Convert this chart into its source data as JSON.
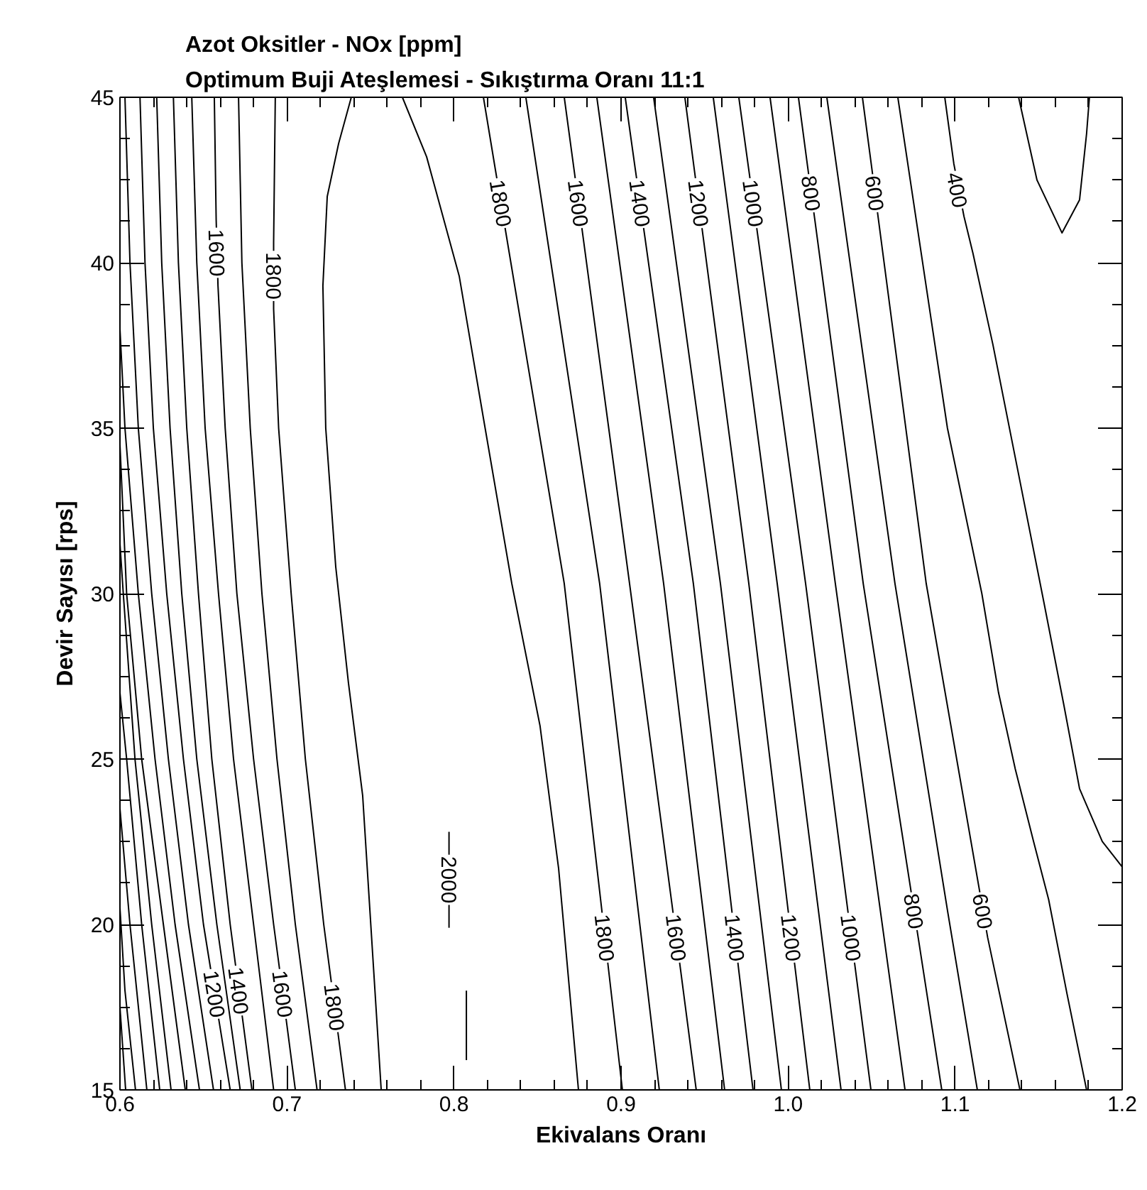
{
  "chart_data": {
    "type": "line",
    "title": "Azot Oksitler - NOx [ppm]",
    "subtitle": "Optimum Buji Ateşlemesi - Sıkıştırma Oranı 11:1",
    "xlabel": "Ekivalans Oranı",
    "ylabel": "Devir Sayısı [rps]",
    "xlim": [
      0.6,
      1.2
    ],
    "ylim": [
      15,
      45
    ],
    "xticks": [
      0.6,
      0.7,
      0.8,
      0.9,
      {
        "value": 1,
        "label": "1.0"
      },
      1.1,
      1.2
    ],
    "yticks": [
      15,
      20,
      25,
      30,
      35,
      40,
      45
    ],
    "series": [
      {
        "color": "#000000",
        "x": [
          0.6,
          0.6034
        ],
        "values": [
          17.5,
          15
        ]
      },
      {
        "color": "#000000",
        "x": [
          0.6,
          0.603,
          0.6093
        ],
        "values": [
          20.5,
          18,
          15
        ]
      },
      {
        "color": "#000000",
        "x": [
          0.6,
          0.606,
          0.6161
        ],
        "values": [
          23.5,
          20,
          15
        ]
      },
      {
        "color": "#000000",
        "x": [
          0.6,
          0.604,
          0.613,
          0.6238
        ],
        "values": [
          27,
          25,
          20,
          15
        ]
      },
      {
        "color": "#000000",
        "x": [
          0.6,
          0.602,
          0.609,
          0.619,
          0.6306
        ],
        "values": [
          31.5,
          30,
          25,
          20,
          15
        ]
      },
      {
        "color": "#000000",
        "x": [
          0.6,
          0.604,
          0.613,
          0.626,
          0.6391
        ],
        "values": [
          34.5,
          30,
          25,
          20,
          15
        ]
      },
      {
        "color": "#000000",
        "x": [
          0.6,
          0.603,
          0.611,
          0.621,
          0.633,
          0.6476
        ],
        "values": [
          38,
          35,
          30,
          25,
          20,
          15
        ]
      },
      {
        "color": "#000000",
        "x": [
          0.603,
          0.606,
          0.611,
          0.619,
          0.629,
          0.641,
          0.656
        ],
        "values": [
          45,
          40,
          35,
          30,
          25,
          20,
          15
        ]
      },
      {
        "color": "#000000",
        "x": [
          0.612,
          0.615,
          0.62,
          0.628,
          0.638,
          0.65,
          0.6535,
          0.6599,
          0.666
        ],
        "values": [
          45,
          40,
          35,
          30,
          25,
          20,
          18.9,
          16.9,
          15
        ]
      },
      {
        "color": "#000000",
        "x": [
          0.622,
          0.625,
          0.63,
          0.637,
          0.646,
          0.658,
          0.672
        ],
        "values": [
          45,
          40,
          35,
          30,
          25,
          20,
          15
        ]
      },
      {
        "color": "#000000",
        "x": [
          0.632,
          0.635,
          0.64,
          0.647,
          0.655,
          0.666,
          0.6686,
          0.6738,
          0.679
        ],
        "values": [
          45,
          40,
          35,
          30,
          25,
          20,
          19,
          17,
          15
        ]
      },
      {
        "color": "#000000",
        "x": [
          0.643,
          0.646,
          0.651,
          0.659,
          0.668,
          0.68,
          0.692
        ],
        "values": [
          45,
          40,
          35,
          30,
          25,
          20,
          15
        ]
      },
      {
        "color": "#000000",
        "x": [
          0.6565,
          0.6576,
          0.6587,
          0.663,
          0.67,
          0.68,
          0.692,
          0.6949,
          0.7001,
          0.705
        ],
        "values": [
          45,
          41.3,
          39.3,
          35,
          30,
          25,
          20,
          18.9,
          16.9,
          15
        ]
      },
      {
        "color": "#000000",
        "x": [
          0.671,
          0.673,
          0.678,
          0.685,
          0.694,
          0.705,
          0.718
        ],
        "values": [
          45,
          40,
          35,
          30,
          25,
          20,
          15
        ]
      },
      {
        "color": "#000000",
        "x": [
          0.693,
          0.692,
          0.692,
          0.695,
          0.7025,
          0.711,
          0.722,
          0.7259,
          0.7311,
          0.735
        ],
        "values": [
          45,
          40.6,
          38.6,
          35,
          30,
          25,
          20,
          18.5,
          16.5,
          15
        ]
      },
      {
        "color": "#000000",
        "x": [
          0.7385,
          0.7309,
          0.7241,
          0.7215,
          0.7232,
          0.7292,
          0.7368,
          0.7453,
          0.7564
        ],
        "values": [
          45,
          43.6,
          42.0,
          39.3,
          35.0,
          30.8,
          27.3,
          23.9,
          15
        ]
      },
      {
        "color": "#000000",
        "x": [
          0.797,
          0.797
        ],
        "values": [
          22.8,
          19.9
        ]
      },
      {
        "color": "#000000",
        "x": [
          0.8074,
          0.8074
        ],
        "values": [
          18.0,
          15.9
        ]
      },
      {
        "color": "#000000",
        "x": [
          0.7691,
          0.7836,
          0.8031,
          0.8176,
          0.8346,
          0.8515,
          0.8626,
          0.8745
        ],
        "values": [
          45,
          43.2,
          39.6,
          35.3,
          30.3,
          26.0,
          21.7,
          15
        ]
      },
      {
        "color": "#000000",
        "x": [
          0.8176,
          0.8248,
          0.8314,
          0.866,
          0.8881,
          0.8926,
          0.9008
        ],
        "values": [
          45,
          42.8,
          40.8,
          30.3,
          20.6,
          18.6,
          15
        ]
      },
      {
        "color": "#000000",
        "x": [
          0.843,
          0.8872,
          0.9229
        ],
        "values": [
          45,
          30.3,
          15
        ]
      },
      {
        "color": "#000000",
        "x": [
          0.866,
          0.8719,
          0.8772,
          0.9051,
          0.9305,
          0.9357,
          0.945
        ],
        "values": [
          45,
          42.8,
          40.8,
          30.3,
          20.6,
          18.6,
          15
        ]
      },
      {
        "color": "#000000",
        "x": [
          0.8855,
          0.9255,
          0.962
        ],
        "values": [
          45,
          30.3,
          15
        ]
      },
      {
        "color": "#000000",
        "x": [
          0.9025,
          0.9086,
          0.9142,
          0.9433,
          0.9659,
          0.9705,
          0.979
        ],
        "values": [
          45,
          42.8,
          40.8,
          30.3,
          20.6,
          18.6,
          15
        ]
      },
      {
        "color": "#000000",
        "x": [
          0.9195,
          0.9595,
          0.996
        ],
        "values": [
          45,
          30.3,
          15
        ]
      },
      {
        "color": "#000000",
        "x": [
          0.9382,
          0.9439,
          0.9491,
          0.9765,
          0.9996,
          1.0044,
          1.013
        ],
        "values": [
          45,
          42.8,
          40.8,
          30.3,
          20.6,
          18.6,
          15
        ]
      },
      {
        "color": "#000000",
        "x": [
          0.9552,
          0.9935,
          1.0317
        ],
        "values": [
          45,
          30.3,
          15
        ]
      },
      {
        "color": "#000000",
        "x": [
          0.9705,
          0.9765,
          0.9819,
          1.0105,
          1.0353,
          1.0404,
          1.0496
        ],
        "values": [
          45,
          42.8,
          40.8,
          30.3,
          20.6,
          18.6,
          15
        ]
      },
      {
        "color": "#000000",
        "x": [
          0.9892,
          1.0283,
          1.07
        ],
        "values": [
          45,
          30.3,
          15
        ]
      },
      {
        "color": "#000000",
        "x": [
          1.0062,
          1.0117,
          1.016,
          1.045,
          1.073,
          1.0779,
          1.092
        ],
        "values": [
          45,
          42.9,
          41.3,
          30.3,
          21.2,
          19.6,
          15
        ]
      },
      {
        "color": "#000000",
        "x": [
          1.0232,
          1.064,
          1.0955,
          1.1133
        ],
        "values": [
          45,
          30.3,
          20.4,
          15
        ]
      },
      {
        "color": "#000000",
        "x": [
          1.0445,
          1.05,
          1.0541,
          1.0827,
          1.114,
          1.1195,
          1.1388
        ],
        "values": [
          45,
          42.9,
          41.3,
          30.3,
          21.2,
          19.6,
          15
        ]
      },
      {
        "color": "#000000",
        "x": [
          1.0657,
          1.0954,
          1.116,
          1.126,
          1.136,
          1.147,
          1.156,
          1.167,
          1.1787
        ],
        "values": [
          45,
          35,
          30,
          27,
          24.7,
          22.5,
          20.75,
          17.9,
          15
        ]
      },
      {
        "color": "#000000",
        "x": [
          1.0938,
          1.0992,
          1.1053,
          1.1107,
          1.1226,
          1.1379,
          1.1532,
          1.1651,
          1.1745,
          1.1881,
          1.2
        ],
        "values": [
          45,
          43.0,
          41.4,
          40.28,
          37.53,
          33.63,
          29.72,
          26.63,
          24.1,
          22.51,
          21.74
        ]
      },
      {
        "color": "#000000",
        "x": [
          1.138,
          1.149,
          1.164,
          1.1745,
          1.1787,
          1.1804
        ],
        "values": [
          45,
          42.5,
          40.9,
          41.9,
          43.9,
          45
        ]
      }
    ],
    "annotations": [
      {
        "text": "1600",
        "x": 0.6581,
        "y": 40.3
      },
      {
        "text": "1800",
        "x": 0.692,
        "y": 39.6
      },
      {
        "text": "1800",
        "x": 0.8281,
        "y": 41.8
      },
      {
        "text": "1600",
        "x": 0.8745,
        "y": 41.8
      },
      {
        "text": "1400",
        "x": 0.9114,
        "y": 41.8
      },
      {
        "text": "1200",
        "x": 0.9465,
        "y": 41.8
      },
      {
        "text": "1000",
        "x": 0.9792,
        "y": 41.8
      },
      {
        "text": "800",
        "x": 1.0139,
        "y": 42.1
      },
      {
        "text": "600",
        "x": 1.052,
        "y": 42.1
      },
      {
        "text": "400",
        "x": 1.1014,
        "y": 42.2
      },
      {
        "text": "1200",
        "x": 0.6567,
        "y": 17.9
      },
      {
        "text": "1400",
        "x": 0.6712,
        "y": 18.0
      },
      {
        "text": "1600",
        "x": 0.6975,
        "y": 17.9
      },
      {
        "text": "1800",
        "x": 0.7285,
        "y": 17.5
      },
      {
        "text": "2000",
        "x": 0.797,
        "y": 21.35
      },
      {
        "text": "1800",
        "x": 0.8903,
        "y": 19.6
      },
      {
        "text": "1600",
        "x": 0.9331,
        "y": 19.6
      },
      {
        "text": "1400",
        "x": 0.9682,
        "y": 19.6
      },
      {
        "text": "1200",
        "x": 1.002,
        "y": 19.6
      },
      {
        "text": "1000",
        "x": 1.0378,
        "y": 19.6
      },
      {
        "text": "800",
        "x": 1.0754,
        "y": 20.4
      },
      {
        "text": "600",
        "x": 1.1167,
        "y": 20.4
      }
    ]
  }
}
